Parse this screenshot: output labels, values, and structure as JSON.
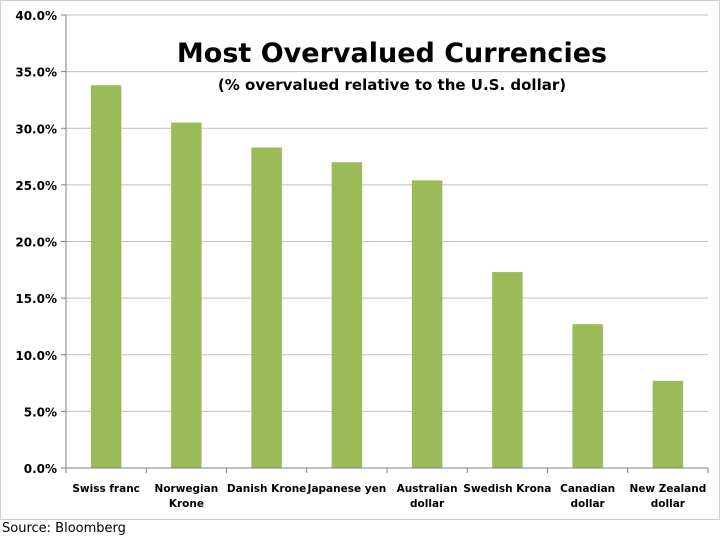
{
  "chart_data": {
    "type": "bar",
    "title": "Most Overvalued Currencies",
    "subtitle": "(% overvalued relative to the U.S. dollar)",
    "categories": [
      "Swiss franc",
      "Norwegian Krone",
      "Danish Krone",
      "Japanese yen",
      "Australian dollar",
      "Swedish Krona",
      "Canadian dollar",
      "New Zealand dollar"
    ],
    "category_lines": [
      [
        "Swiss franc"
      ],
      [
        "Norwegian",
        "Krone"
      ],
      [
        "Danish Krone"
      ],
      [
        "Japanese yen"
      ],
      [
        "Australian",
        "dollar"
      ],
      [
        "Swedish Krona"
      ],
      [
        "Canadian",
        "dollar"
      ],
      [
        "New Zealand",
        "dollar"
      ]
    ],
    "values": [
      33.8,
      30.5,
      28.3,
      27.0,
      25.4,
      17.3,
      12.7,
      7.7
    ],
    "ylim": [
      0,
      40
    ],
    "yticks": [
      "0.0%",
      "5.0%",
      "10.0%",
      "15.0%",
      "20.0%",
      "25.0%",
      "30.0%",
      "35.0%",
      "40.0%"
    ],
    "ytick_values": [
      0,
      5,
      10,
      15,
      20,
      25,
      30,
      35,
      40
    ],
    "xlabel": "",
    "ylabel": "",
    "grid": true,
    "bar_color": "#9bbb59",
    "grid_color": "#bfbfbf"
  },
  "source": "Source: Bloomberg"
}
